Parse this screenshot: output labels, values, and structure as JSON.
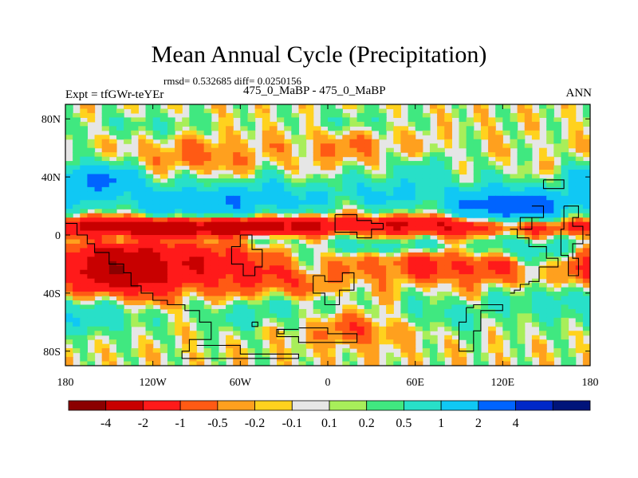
{
  "chart_data": {
    "type": "heatmap",
    "title": "Mean Annual Cycle (Precipitation)",
    "stats": "rmsd= 0.532685 diff= 0.0250156",
    "left_label": "Expt = tfGWr-teYEr",
    "center_label": "475_0_MaBP - 475_0_MaBP",
    "right_label": "ANN",
    "x_range": [
      -180,
      180
    ],
    "y_range": [
      -90,
      90
    ],
    "x_ticks": [
      {
        "value": -180,
        "label": "180"
      },
      {
        "value": -120,
        "label": "120W"
      },
      {
        "value": -60,
        "label": "60W"
      },
      {
        "value": 0,
        "label": "0"
      },
      {
        "value": 60,
        "label": "60E"
      },
      {
        "value": 120,
        "label": "120E"
      },
      {
        "value": 180,
        "label": "180"
      }
    ],
    "y_ticks": [
      {
        "value": 80,
        "label": "80N"
      },
      {
        "value": 40,
        "label": "40N"
      },
      {
        "value": 0,
        "label": "0"
      },
      {
        "value": -40,
        "label": "40S"
      },
      {
        "value": -80,
        "label": "80S"
      }
    ],
    "colorbar": {
      "colors": [
        "#8b0000",
        "#c80000",
        "#ff1a1a",
        "#ff5a14",
        "#ffa01e",
        "#ffd21e",
        "#e6e6e6",
        "#a8ee5a",
        "#40e880",
        "#28e0c8",
        "#10c8f4",
        "#0064ff",
        "#0028c8",
        "#00147a"
      ],
      "labels": [
        "-4",
        "-2",
        "-1",
        "-0.5",
        "-0.2",
        "-0.1",
        "0.1",
        "0.2",
        "0.5",
        "1",
        "2",
        "4"
      ]
    }
  }
}
